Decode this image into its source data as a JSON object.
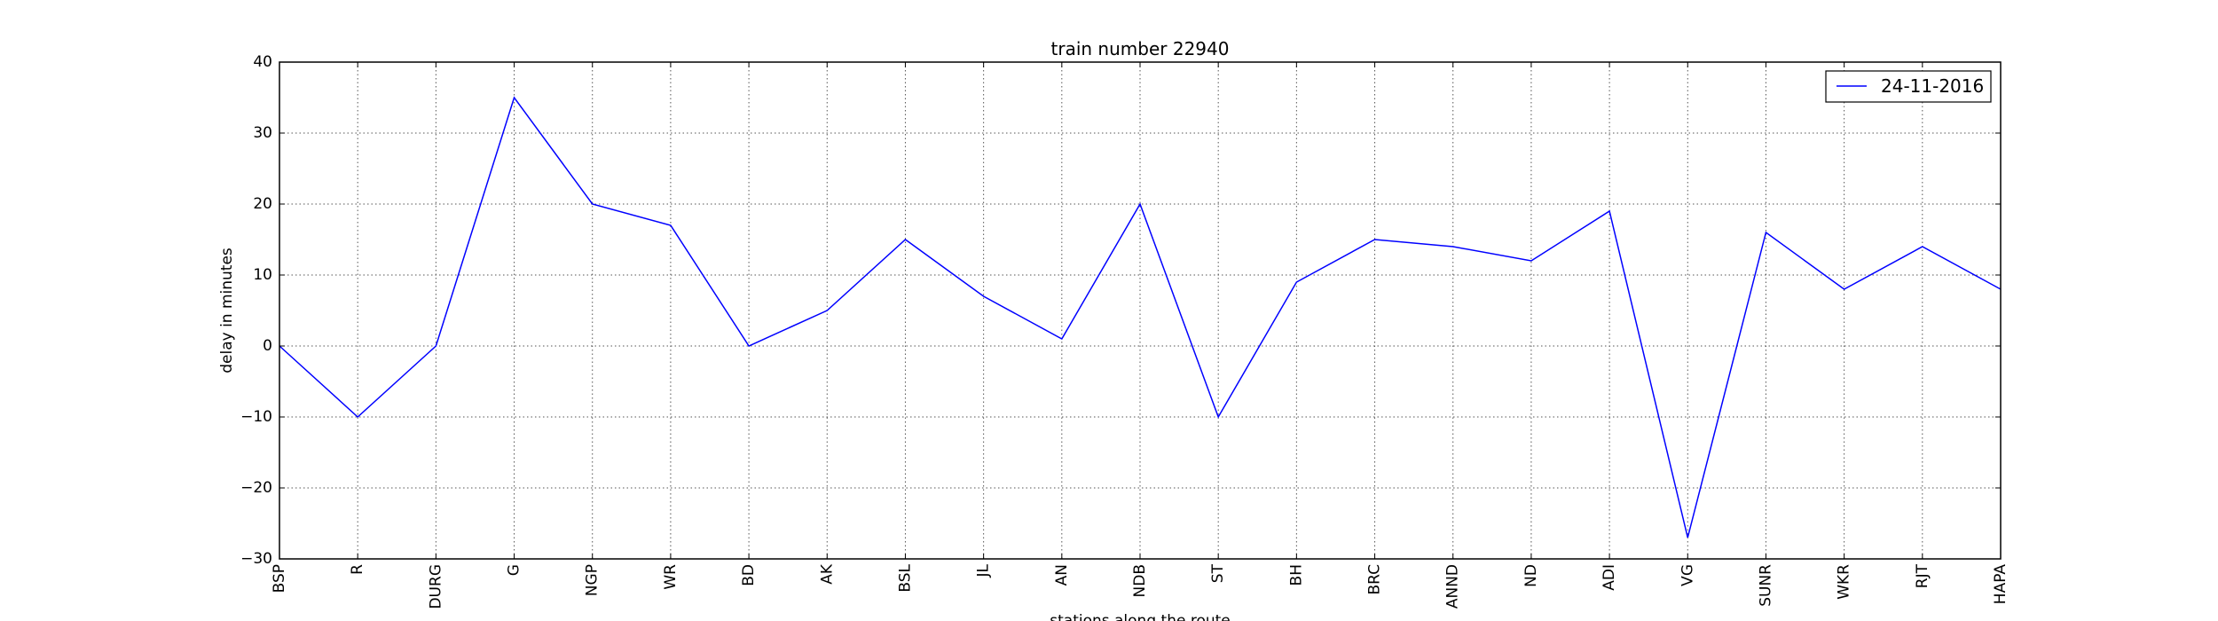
{
  "chart_data": {
    "type": "line",
    "title": "train number 22940",
    "xlabel": "stations along the route",
    "ylabel": "delay in minutes",
    "categories": [
      "BSP",
      "R",
      "DURG",
      "G",
      "NGP",
      "WR",
      "BD",
      "AK",
      "BSL",
      "JL",
      "AN",
      "NDB",
      "ST",
      "BH",
      "BRC",
      "ANND",
      "ND",
      "ADI",
      "VG",
      "SUNR",
      "WKR",
      "RJT",
      "HAPA"
    ],
    "series": [
      {
        "name": "24-11-2016",
        "color": "#0000ff",
        "values": [
          0,
          -10,
          0,
          35,
          20,
          17,
          0,
          5,
          15,
          7,
          1,
          20,
          -10,
          9,
          15,
          14,
          12,
          19,
          -27,
          16,
          8,
          14,
          8
        ]
      }
    ],
    "ylim": [
      -30,
      40
    ],
    "yticks": [
      -30,
      -20,
      -10,
      0,
      10,
      20,
      30,
      40
    ],
    "ytick_labels": [
      "−30",
      "−20",
      "−10",
      "0",
      "10",
      "20",
      "30",
      "40"
    ],
    "grid": true,
    "legend_position": "top-right"
  }
}
